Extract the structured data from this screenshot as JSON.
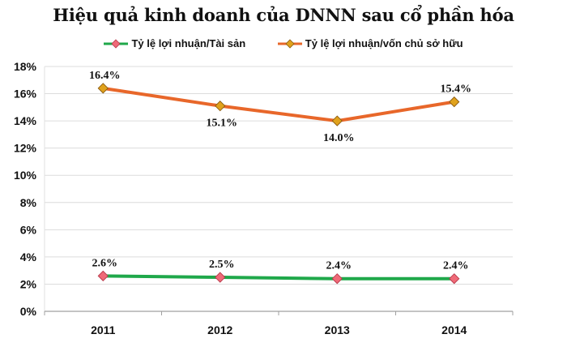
{
  "chart_data": {
    "type": "line",
    "title": "Hiệu quả kinh doanh của DNNN sau cổ phần hóa",
    "xlabel": "",
    "ylabel": "",
    "categories": [
      "2011",
      "2012",
      "2013",
      "2014"
    ],
    "ylim": [
      0,
      18
    ],
    "yticks": [
      0,
      2,
      4,
      6,
      8,
      10,
      12,
      14,
      16,
      18
    ],
    "ytick_labels": [
      "0%",
      "2%",
      "4%",
      "6%",
      "8%",
      "10%",
      "12%",
      "14%",
      "16%",
      "18%"
    ],
    "grid": true,
    "legend_position": "top-center",
    "series": [
      {
        "name": "Tỷ lệ lợi nhuận/Tài sản",
        "values": [
          2.6,
          2.5,
          2.4,
          2.4
        ],
        "labels": [
          "2.6%",
          "2.5%",
          "2.4%",
          "2.4%"
        ],
        "line_color": "#1fa84a",
        "marker_color": "#ef6a78",
        "marker": "diamond",
        "label_position": [
          "above",
          "above",
          "above",
          "above"
        ]
      },
      {
        "name": "Tỷ lệ lợi nhuận/vốn chủ sở hữu",
        "values": [
          16.4,
          15.1,
          14.0,
          15.4
        ],
        "labels": [
          "16.4%",
          "15.1%",
          "14.0%",
          "15.4%"
        ],
        "line_color": "#e8672a",
        "marker_color": "#e0a21c",
        "marker": "diamond",
        "label_position": [
          "above",
          "below",
          "below",
          "above"
        ]
      }
    ]
  }
}
